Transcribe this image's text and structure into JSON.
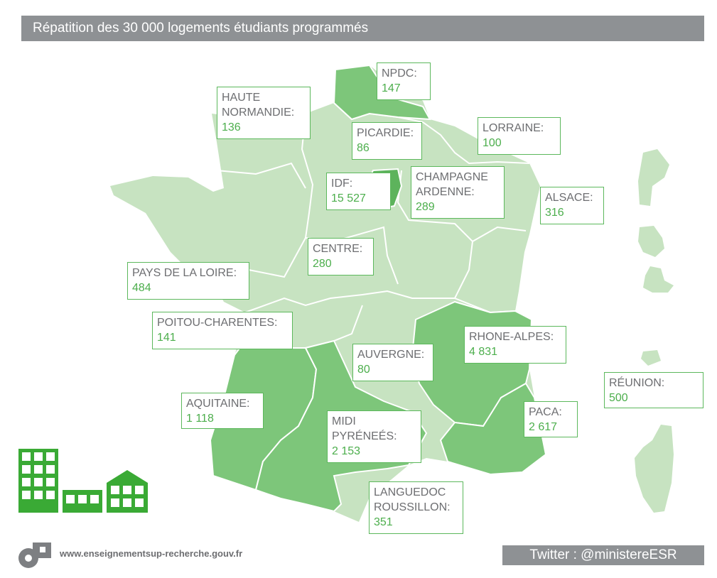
{
  "title": "Répatition des 30 000 logements étudiants programmés",
  "colors": {
    "light": "#c7e3c1",
    "medium": "#7dc67a",
    "dark": "#5db35c",
    "border": "#5cb85c",
    "grey": "#8e9194"
  },
  "regions": [
    {
      "key": "npdc",
      "name": "NPDC:",
      "value": "147"
    },
    {
      "key": "haute-normandie",
      "name": "HAUTE\nNORMANDIE:",
      "value": "136"
    },
    {
      "key": "picardie",
      "name": "PICARDIE:",
      "value": "86"
    },
    {
      "key": "lorraine",
      "name": "LORRAINE:",
      "value": "100"
    },
    {
      "key": "idf",
      "name": "IDF:",
      "value": "15 527"
    },
    {
      "key": "champagne-ardenne",
      "name": "CHAMPAGNE\nARDENNE:",
      "value": "289"
    },
    {
      "key": "alsace",
      "name": "ALSACE:",
      "value": "316"
    },
    {
      "key": "centre",
      "name": "CENTRE:",
      "value": "280"
    },
    {
      "key": "pays-de-la-loire",
      "name": "PAYS DE LA LOIRE:",
      "value": "484"
    },
    {
      "key": "poitou-charentes",
      "name": "POITOU-CHARENTES:",
      "value": "141"
    },
    {
      "key": "rhone-alpes",
      "name": "RHONE-ALPES:",
      "value": "4 831"
    },
    {
      "key": "auvergne",
      "name": "AUVERGNE:",
      "value": "80"
    },
    {
      "key": "reunion",
      "name": "RÉUNION:",
      "value": "500"
    },
    {
      "key": "aquitaine",
      "name": "AQUITAINE:",
      "value": "1 118"
    },
    {
      "key": "midi-pyrenees",
      "name": "MIDI\nPYRÉNEÉS:",
      "value": "2 153"
    },
    {
      "key": "paca",
      "name": "PACA:",
      "value": "2 617"
    },
    {
      "key": "languedoc-roussillon",
      "name": "LANGUEDOC\nROUSSILLON:",
      "value": "351"
    }
  ],
  "footer": {
    "url": "www.enseignementsup-recherche.gouv.fr",
    "twitter": "Twitter : @ministereESR"
  }
}
